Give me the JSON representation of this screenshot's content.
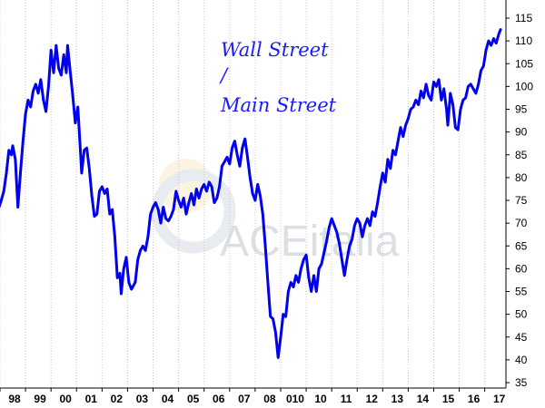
{
  "chart_data": {
    "type": "line",
    "title": "",
    "annotation": [
      "Wall Street",
      "/",
      "Main Street"
    ],
    "watermark": "ACEitalia",
    "xlabel": "",
    "ylabel": "",
    "ylim": [
      35,
      115
    ],
    "y_ticks": [
      35,
      40,
      45,
      50,
      55,
      60,
      65,
      70,
      75,
      80,
      85,
      90,
      95,
      100,
      105,
      110,
      115
    ],
    "x_range": [
      1998.0,
      2017.83
    ],
    "x_ticks": [
      {
        "label": "98",
        "x": 1998.0
      },
      {
        "label": "99",
        "x": 1999.0
      },
      {
        "label": "00",
        "x": 2000.0
      },
      {
        "label": "01",
        "x": 2001.0
      },
      {
        "label": "02",
        "x": 2002.0
      },
      {
        "label": "03",
        "x": 2003.0
      },
      {
        "label": "04",
        "x": 2004.0
      },
      {
        "label": "05",
        "x": 2005.0
      },
      {
        "label": "06",
        "x": 2006.0
      },
      {
        "label": "07",
        "x": 2007.0
      },
      {
        "label": "08",
        "x": 2008.0
      },
      {
        "label": "010",
        "x": 2009.0
      },
      {
        "label": "10",
        "x": 2010.0
      },
      {
        "label": "11",
        "x": 2011.0
      },
      {
        "label": "12",
        "x": 2012.0
      },
      {
        "label": "13",
        "x": 2013.0
      },
      {
        "label": "14",
        "x": 2014.0
      },
      {
        "label": "15",
        "x": 2015.0
      },
      {
        "label": "16",
        "x": 2016.0
      },
      {
        "label": "17",
        "x": 2017.0
      }
    ],
    "grid": "vertical-dotted",
    "line_color": "#0000ee",
    "series": [
      {
        "points": [
          [
            1997.9,
            72.5
          ],
          [
            1998.05,
            75.0
          ],
          [
            1998.15,
            77.0
          ],
          [
            1998.25,
            81.0
          ],
          [
            1998.35,
            86.0
          ],
          [
            1998.45,
            85.0
          ],
          [
            1998.5,
            87.0
          ],
          [
            1998.6,
            84.0
          ],
          [
            1998.7,
            73.5
          ],
          [
            1998.8,
            81.0
          ],
          [
            1998.9,
            88.0
          ],
          [
            1999.0,
            94.0
          ],
          [
            1999.1,
            97.0
          ],
          [
            1999.2,
            95.5
          ],
          [
            1999.3,
            99.0
          ],
          [
            1999.4,
            100.5
          ],
          [
            1999.5,
            98.5
          ],
          [
            1999.6,
            101.5
          ],
          [
            1999.7,
            97.0
          ],
          [
            1999.8,
            94.5
          ],
          [
            1999.9,
            100.0
          ],
          [
            2000.0,
            108.0
          ],
          [
            2000.1,
            103.0
          ],
          [
            2000.2,
            109.0
          ],
          [
            2000.3,
            104.0
          ],
          [
            2000.4,
            102.5
          ],
          [
            2000.5,
            107.0
          ],
          [
            2000.6,
            103.0
          ],
          [
            2000.65,
            109.0
          ],
          [
            2000.75,
            103.5
          ],
          [
            2000.85,
            98.0
          ],
          [
            2000.95,
            92.0
          ],
          [
            2001.05,
            95.5
          ],
          [
            2001.15,
            86.0
          ],
          [
            2001.2,
            81.0
          ],
          [
            2001.3,
            86.0
          ],
          [
            2001.4,
            86.5
          ],
          [
            2001.5,
            82.0
          ],
          [
            2001.6,
            76.0
          ],
          [
            2001.7,
            71.5
          ],
          [
            2001.8,
            72.0
          ],
          [
            2001.9,
            77.0
          ],
          [
            2002.0,
            78.0
          ],
          [
            2002.1,
            76.5
          ],
          [
            2002.2,
            77.5
          ],
          [
            2002.3,
            72.0
          ],
          [
            2002.4,
            73.0
          ],
          [
            2002.5,
            67.0
          ],
          [
            2002.6,
            58.0
          ],
          [
            2002.7,
            59.0
          ],
          [
            2002.75,
            54.5
          ],
          [
            2002.85,
            60.0
          ],
          [
            2002.95,
            62.5
          ],
          [
            2003.05,
            57.0
          ],
          [
            2003.15,
            55.5
          ],
          [
            2003.3,
            57.0
          ],
          [
            2003.4,
            62.0
          ],
          [
            2003.5,
            64.0
          ],
          [
            2003.6,
            65.0
          ],
          [
            2003.7,
            64.0
          ],
          [
            2003.8,
            67.0
          ],
          [
            2003.9,
            72.0
          ],
          [
            2004.0,
            73.5
          ],
          [
            2004.1,
            74.5
          ],
          [
            2004.2,
            73.0
          ],
          [
            2004.3,
            70.0
          ],
          [
            2004.4,
            73.5
          ],
          [
            2004.5,
            71.0
          ],
          [
            2004.6,
            70.5
          ],
          [
            2004.7,
            71.5
          ],
          [
            2004.8,
            73.0
          ],
          [
            2004.9,
            77.0
          ],
          [
            2005.0,
            75.0
          ],
          [
            2005.1,
            73.5
          ],
          [
            2005.2,
            75.5
          ],
          [
            2005.3,
            72.0
          ],
          [
            2005.4,
            74.5
          ],
          [
            2005.5,
            76.5
          ],
          [
            2005.6,
            74.0
          ],
          [
            2005.7,
            77.5
          ],
          [
            2005.8,
            75.5
          ],
          [
            2005.9,
            77.5
          ],
          [
            2006.0,
            78.5
          ],
          [
            2006.1,
            77.0
          ],
          [
            2006.2,
            79.0
          ],
          [
            2006.3,
            78.0
          ],
          [
            2006.4,
            74.5
          ],
          [
            2006.5,
            75.5
          ],
          [
            2006.6,
            78.0
          ],
          [
            2006.7,
            82.5
          ],
          [
            2006.8,
            83.5
          ],
          [
            2006.9,
            84.5
          ],
          [
            2007.0,
            83.0
          ],
          [
            2007.1,
            86.5
          ],
          [
            2007.2,
            88.0
          ],
          [
            2007.3,
            85.0
          ],
          [
            2007.4,
            82.5
          ],
          [
            2007.5,
            86.5
          ],
          [
            2007.6,
            88.5
          ],
          [
            2007.7,
            84.5
          ],
          [
            2007.8,
            80.0
          ],
          [
            2007.9,
            76.5
          ],
          [
            2008.0,
            75.0
          ],
          [
            2008.1,
            78.5
          ],
          [
            2008.2,
            76.0
          ],
          [
            2008.3,
            72.0
          ],
          [
            2008.4,
            65.0
          ],
          [
            2008.5,
            57.0
          ],
          [
            2008.6,
            49.5
          ],
          [
            2008.7,
            49.0
          ],
          [
            2008.8,
            46.0
          ],
          [
            2008.9,
            40.5
          ],
          [
            2009.0,
            45.0
          ],
          [
            2009.1,
            50.0
          ],
          [
            2009.2,
            49.5
          ],
          [
            2009.3,
            55.0
          ],
          [
            2009.4,
            57.0
          ],
          [
            2009.5,
            56.0
          ],
          [
            2009.6,
            58.5
          ],
          [
            2009.7,
            57.0
          ],
          [
            2009.8,
            60.0
          ],
          [
            2009.9,
            62.0
          ],
          [
            2010.0,
            63.0
          ],
          [
            2010.1,
            58.0
          ],
          [
            2010.2,
            55.0
          ],
          [
            2010.3,
            58.5
          ],
          [
            2010.4,
            55.0
          ],
          [
            2010.5,
            60.0
          ],
          [
            2010.6,
            61.0
          ],
          [
            2010.7,
            63.5
          ],
          [
            2010.8,
            66.0
          ],
          [
            2010.9,
            69.0
          ],
          [
            2011.0,
            71.0
          ],
          [
            2011.1,
            69.5
          ],
          [
            2011.2,
            68.0
          ],
          [
            2011.3,
            65.5
          ],
          [
            2011.4,
            62.0
          ],
          [
            2011.5,
            58.5
          ],
          [
            2011.6,
            62.0
          ],
          [
            2011.7,
            65.0
          ],
          [
            2011.8,
            66.5
          ],
          [
            2011.9,
            69.5
          ],
          [
            2012.0,
            71.0
          ],
          [
            2012.1,
            70.0
          ],
          [
            2012.2,
            67.0
          ],
          [
            2012.3,
            69.5
          ],
          [
            2012.4,
            71.0
          ],
          [
            2012.5,
            69.5
          ],
          [
            2012.6,
            72.5
          ],
          [
            2012.7,
            71.5
          ],
          [
            2012.8,
            74.5
          ],
          [
            2012.9,
            78.0
          ],
          [
            2013.0,
            81.0
          ],
          [
            2013.1,
            79.0
          ],
          [
            2013.2,
            84.0
          ],
          [
            2013.3,
            82.0
          ],
          [
            2013.4,
            86.0
          ],
          [
            2013.5,
            85.0
          ],
          [
            2013.6,
            88.0
          ],
          [
            2013.7,
            91.0
          ],
          [
            2013.8,
            89.0
          ],
          [
            2013.9,
            91.5
          ],
          [
            2014.0,
            93.0
          ],
          [
            2014.1,
            95.0
          ],
          [
            2014.2,
            95.5
          ],
          [
            2014.3,
            97.0
          ],
          [
            2014.4,
            96.0
          ],
          [
            2014.5,
            99.0
          ],
          [
            2014.6,
            97.5
          ],
          [
            2014.7,
            100.5
          ],
          [
            2014.8,
            98.0
          ],
          [
            2014.9,
            97.0
          ],
          [
            2015.0,
            101.0
          ],
          [
            2015.1,
            100.0
          ],
          [
            2015.2,
            101.5
          ],
          [
            2015.3,
            97.0
          ],
          [
            2015.4,
            99.5
          ],
          [
            2015.5,
            95.0
          ],
          [
            2015.55,
            91.5
          ],
          [
            2015.65,
            98.5
          ],
          [
            2015.75,
            96.0
          ],
          [
            2015.85,
            91.0
          ],
          [
            2015.95,
            90.5
          ],
          [
            2016.05,
            95.0
          ],
          [
            2016.15,
            97.0
          ],
          [
            2016.25,
            97.5
          ],
          [
            2016.35,
            100.0
          ],
          [
            2016.45,
            100.5
          ],
          [
            2016.55,
            99.5
          ],
          [
            2016.65,
            98.5
          ],
          [
            2016.75,
            100.5
          ],
          [
            2016.85,
            103.5
          ],
          [
            2016.95,
            104.5
          ],
          [
            2017.05,
            108.0
          ],
          [
            2017.15,
            110.0
          ],
          [
            2017.25,
            109.0
          ],
          [
            2017.35,
            110.5
          ],
          [
            2017.45,
            109.5
          ],
          [
            2017.55,
            111.5
          ],
          [
            2017.62,
            112.5
          ]
        ]
      }
    ]
  }
}
